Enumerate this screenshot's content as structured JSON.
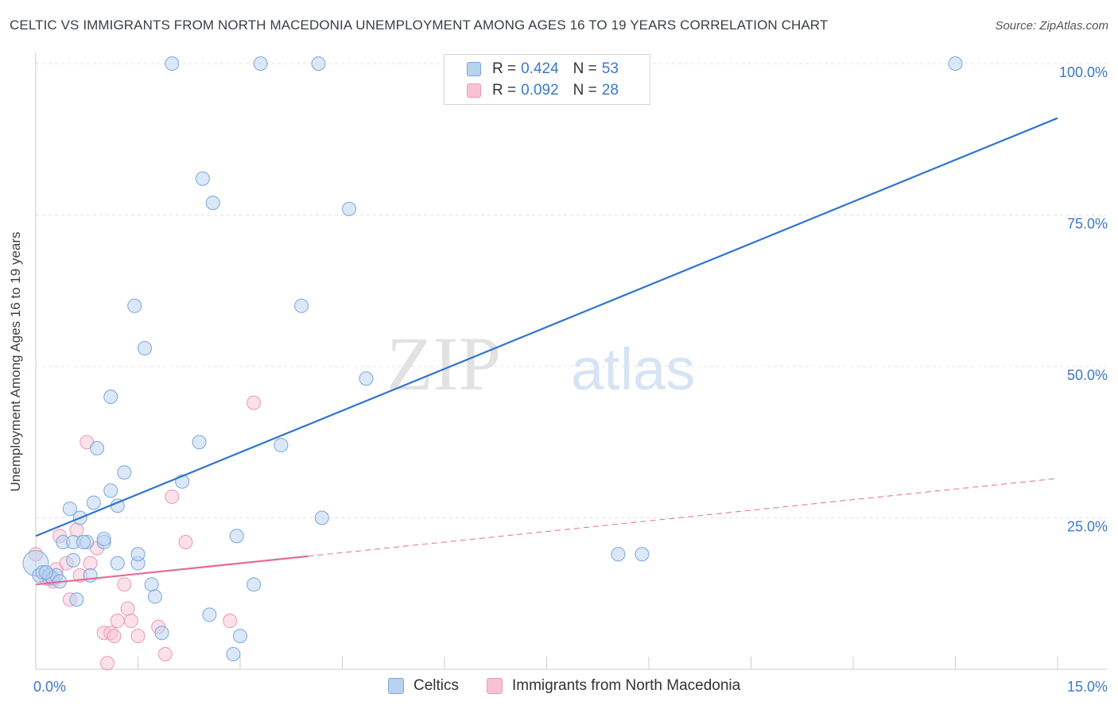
{
  "title": "CELTIC VS IMMIGRANTS FROM NORTH MACEDONIA UNEMPLOYMENT AMONG AGES 16 TO 19 YEARS CORRELATION CHART",
  "source": "Source: ZipAtlas.com",
  "watermark": {
    "zip": "ZIP",
    "atlas": "atlas"
  },
  "legend_top": {
    "rows": [
      {
        "r_label": "R =",
        "r_value": "0.424",
        "n_label": "N =",
        "n_value": "53"
      },
      {
        "r_label": "R =",
        "r_value": "0.092",
        "n_label": "N =",
        "n_value": "28"
      }
    ]
  },
  "legend_bottom": {
    "series1": "Celtics",
    "series2": "Immigrants from North Macedonia"
  },
  "colors": {
    "celtics_fill": "#b8d2f2",
    "celtics_stroke": "#7aa6de",
    "celtics_line": "#2f74cf",
    "macedonia_fill": "#f7c3d3",
    "macedonia_stroke": "#ee98b4",
    "macedonia_line": "#e56b96",
    "tick_text": "#3a78c8",
    "grid": "#e3e3e3"
  },
  "chart_data": {
    "type": "scatter",
    "title": "CELTIC VS IMMIGRANTS FROM NORTH MACEDONIA UNEMPLOYMENT AMONG AGES 16 TO 19 YEARS CORRELATION CHART",
    "xlabel": "",
    "ylabel": "Unemployment Among Ages 16 to 19 years",
    "xlim": [
      0,
      15
    ],
    "ylim": [
      0,
      100
    ],
    "x_ticks": [
      "0.0%",
      "15.0%"
    ],
    "y_ticks": [
      {
        "value": 25,
        "label": "25.0%"
      },
      {
        "value": 50,
        "label": "50.0%"
      },
      {
        "value": 75,
        "label": "75.0%"
      },
      {
        "value": 100,
        "label": "100.0%"
      }
    ],
    "grid": true,
    "series": [
      {
        "name": "Celtics",
        "r": 0.424,
        "n": 53,
        "trend": {
          "x0": 0,
          "y0": 22,
          "x1": 15,
          "y1": 91,
          "dashed_from": null
        },
        "points": [
          [
            0.0,
            17.5
          ],
          [
            0.05,
            15.5
          ],
          [
            0.1,
            16.0
          ],
          [
            0.2,
            15.5
          ],
          [
            0.25,
            15.0
          ],
          [
            0.3,
            15.5
          ],
          [
            0.4,
            21.0
          ],
          [
            0.5,
            26.5
          ],
          [
            0.55,
            21.0
          ],
          [
            0.65,
            25.0
          ],
          [
            0.75,
            21.0
          ],
          [
            0.85,
            27.5
          ],
          [
            0.9,
            36.5
          ],
          [
            1.0,
            21.0
          ],
          [
            1.1,
            29.5
          ],
          [
            1.2,
            17.5
          ],
          [
            1.3,
            32.5
          ],
          [
            1.45,
            60.0
          ],
          [
            1.5,
            17.5
          ],
          [
            1.6,
            53.0
          ],
          [
            1.7,
            14.0
          ],
          [
            1.75,
            12.0
          ],
          [
            1.85,
            6.0
          ],
          [
            2.0,
            100.0
          ],
          [
            2.15,
            31.0
          ],
          [
            2.4,
            37.5
          ],
          [
            2.45,
            81.0
          ],
          [
            2.55,
            9.0
          ],
          [
            2.6,
            77.0
          ],
          [
            2.9,
            2.5
          ],
          [
            2.95,
            22.0
          ],
          [
            3.0,
            5.5
          ],
          [
            3.2,
            14.0
          ],
          [
            3.3,
            100.0
          ],
          [
            3.6,
            37.0
          ],
          [
            3.9,
            60.0
          ],
          [
            4.15,
            100.0
          ],
          [
            4.2,
            25.0
          ],
          [
            4.6,
            76.0
          ],
          [
            4.85,
            48.0
          ],
          [
            8.55,
            19.0
          ],
          [
            8.9,
            19.0
          ],
          [
            13.5,
            100.0
          ],
          [
            1.1,
            45.0
          ],
          [
            0.8,
            15.5
          ],
          [
            0.55,
            18.0
          ],
          [
            0.6,
            11.5
          ],
          [
            1.0,
            21.5
          ],
          [
            1.2,
            27.0
          ],
          [
            1.5,
            19.0
          ],
          [
            0.35,
            14.5
          ],
          [
            0.15,
            16.0
          ],
          [
            0.7,
            21.0
          ]
        ]
      },
      {
        "name": "Immigrants from North Macedonia",
        "r": 0.092,
        "n": 28,
        "trend": {
          "x0": 0,
          "y0": 14,
          "x1": 15,
          "y1": 31.5,
          "dashed_from": 4.0
        },
        "points": [
          [
            0.0,
            19.0
          ],
          [
            0.15,
            15.0
          ],
          [
            0.25,
            14.5
          ],
          [
            0.3,
            16.5
          ],
          [
            0.35,
            22.0
          ],
          [
            0.45,
            17.5
          ],
          [
            0.5,
            11.5
          ],
          [
            0.6,
            23.0
          ],
          [
            0.65,
            15.5
          ],
          [
            0.75,
            37.5
          ],
          [
            0.8,
            17.5
          ],
          [
            0.9,
            20.0
          ],
          [
            1.0,
            6.0
          ],
          [
            1.1,
            6.0
          ],
          [
            1.15,
            5.5
          ],
          [
            1.2,
            8.0
          ],
          [
            1.3,
            14.0
          ],
          [
            1.35,
            10.0
          ],
          [
            1.4,
            8.0
          ],
          [
            1.5,
            5.5
          ],
          [
            1.8,
            7.0
          ],
          [
            1.9,
            2.5
          ],
          [
            2.0,
            28.5
          ],
          [
            2.2,
            21.0
          ],
          [
            2.85,
            8.0
          ],
          [
            3.2,
            44.0
          ],
          [
            1.05,
            1.0
          ],
          [
            0.2,
            15.0
          ]
        ]
      }
    ]
  }
}
